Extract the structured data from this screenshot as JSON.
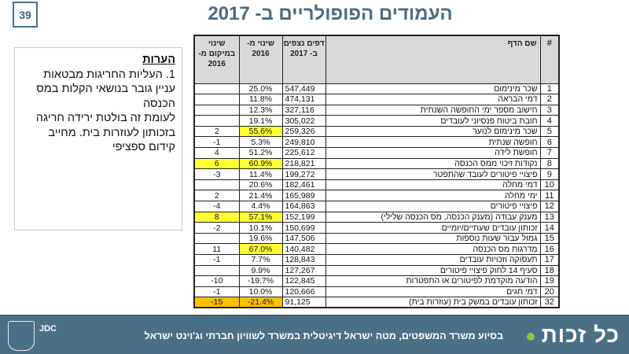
{
  "slide_number": "39",
  "title": "העמודים הפופולריים ב- 2017",
  "notes": {
    "heading": "הערות",
    "lines": [
      "1. העליות החריגות מבטאות עניין גובר בנושאי הקלות במס הכנסה",
      "לעומת זה בולטת ירידה חריגה בזכותון לעוזרות בית. מחייב קידום ספציפי"
    ]
  },
  "table": {
    "headers": {
      "rank_change": "שינוי במיקום מ- 2016",
      "change": "שינוי מ- 2016",
      "views": "דפים נצפים ב- 2017",
      "name": "שם הדף",
      "num": "#"
    },
    "rows": [
      {
        "rank_change": "",
        "change": "25.0%",
        "views": "547,449",
        "name": "שכר מינימום",
        "num": "1"
      },
      {
        "rank_change": "",
        "change": "11.8%",
        "views": "474,131",
        "name": "דמי הבראה",
        "num": "2"
      },
      {
        "rank_change": "",
        "change": "12.3%",
        "views": "327,116",
        "name": "חישוב מספר ימי החופשה השנתית",
        "num": "3"
      },
      {
        "rank_change": "",
        "change": "19.1%",
        "views": "305,022",
        "name": "חובת ביטוח פנסיוני לעובדים",
        "num": "4"
      },
      {
        "rank_change": "2",
        "change": "55.6%",
        "views": "259,326",
        "name": "שכר מינימום לנוער",
        "num": "5",
        "hl_change": "yellow"
      },
      {
        "rank_change": "-1",
        "change": "5.3%",
        "views": "249,810",
        "name": "חופשה שנתית",
        "num": "6"
      },
      {
        "rank_change": "4",
        "change": "51.2%",
        "views": "225,612",
        "name": "חופשת לידה",
        "num": "7"
      },
      {
        "rank_change": "6",
        "change": "60.9%",
        "views": "218,821",
        "name": "נקודות זיכוי ממס הכנסה",
        "num": "8",
        "hl_rank": "yellow",
        "hl_change": "yellow"
      },
      {
        "rank_change": "-3",
        "change": "11.4%",
        "views": "199,272",
        "name": "פיצויי פיטורים לעובד שהתפטר",
        "num": "9"
      },
      {
        "rank_change": "",
        "change": "20.6%",
        "views": "182,461",
        "name": "דמי מחלה",
        "num": "10"
      },
      {
        "rank_change": "2",
        "change": "21.4%",
        "views": "165,989",
        "name": "ימי מחלה",
        "num": "11"
      },
      {
        "rank_change": "-4",
        "change": "4.4%",
        "views": "164,863",
        "name": "פיצויי פיטורים",
        "num": "12"
      },
      {
        "rank_change": "8",
        "change": "57.1%",
        "views": "152,199",
        "name": "מענק עבודה (מענק הכנסה, מס הכנסה שלילי)",
        "num": "13",
        "hl_rank": "yellow",
        "hl_change": "yellow"
      },
      {
        "rank_change": "-2",
        "change": "10.1%",
        "views": "150,699",
        "name": "זכותון עובדים שעתיים/יומיים",
        "num": "14"
      },
      {
        "rank_change": "",
        "change": "19.6%",
        "views": "147,506",
        "name": "גמול עבור שעות נוספות",
        "num": "15"
      },
      {
        "rank_change": "11",
        "change": "67.0%",
        "views": "140,482",
        "name": "מדרגות מס הכנסה",
        "num": "16",
        "hl_change": "yellow"
      },
      {
        "rank_change": "-1",
        "change": "7.7%",
        "views": "128,843",
        "name": "תעסוקה וזכויות עובדים",
        "num": "17"
      },
      {
        "rank_change": "",
        "change": "9.9%",
        "views": "127,267",
        "name": "סעיף 14 לחוק פיצויי פיטורים",
        "num": "18"
      },
      {
        "rank_change": "-10",
        "change": "-19.7%",
        "views": "122,845",
        "name": "הודעה מוקדמת לפיטורים או התפטרות",
        "num": "19"
      },
      {
        "rank_change": "-1",
        "change": "10.0%",
        "views": "120,666",
        "name": "דמי חגים",
        "num": "20"
      },
      {
        "rank_change": "-15",
        "change": "-21.4%",
        "views": "91,125",
        "name": "זכותון עובדים במשק בית (עוזרות בית)",
        "num": "32",
        "hl_rank": "orange",
        "hl_change": "orange"
      }
    ]
  },
  "footer": {
    "logo": "כל זכות",
    "text": "בסיוע משרד המשפטים, מטה ישראל דיגיטלית במשרד לשוויון חברתי וג'וינט ישראל",
    "jdc": "JDC"
  },
  "colors": {
    "title": "#4a6a82",
    "footer": "#4a7088",
    "highlight_yellow": "#ffff33",
    "highlight_orange": "#ffc000",
    "logo_dot": "#8dc63f"
  }
}
